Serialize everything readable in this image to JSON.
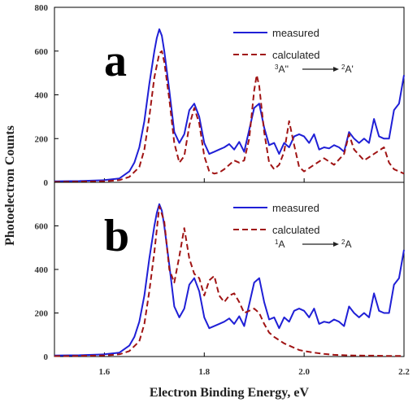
{
  "chart_data": [
    {
      "type": "line",
      "panel_label": "a",
      "xlabel": "Electron Binding Energy, eV",
      "ylabel": "Photoelectron Counts",
      "xlim": [
        1.5,
        2.2
      ],
      "ylim": [
        0,
        800
      ],
      "xticks": [
        "1.6",
        "1.8",
        "2.0",
        "2.2"
      ],
      "yticks": [
        "0",
        "200",
        "400",
        "600",
        "800"
      ],
      "transition": {
        "from_sup": "3",
        "from": "A''",
        "to_sup": "2",
        "to": "A'"
      },
      "colors": {
        "measured": "#1f1fd6",
        "calculated": "#a01414"
      },
      "series": [
        {
          "name": "measured",
          "style": "solid",
          "x": [
            1.5,
            1.55,
            1.6,
            1.63,
            1.65,
            1.66,
            1.67,
            1.68,
            1.69,
            1.7,
            1.705,
            1.71,
            1.715,
            1.72,
            1.73,
            1.74,
            1.75,
            1.76,
            1.77,
            1.78,
            1.79,
            1.8,
            1.81,
            1.82,
            1.83,
            1.84,
            1.85,
            1.86,
            1.87,
            1.88,
            1.89,
            1.9,
            1.91,
            1.92,
            1.93,
            1.94,
            1.95,
            1.96,
            1.97,
            1.98,
            1.99,
            2.0,
            2.01,
            2.02,
            2.03,
            2.04,
            2.05,
            2.06,
            2.07,
            2.08,
            2.09,
            2.1,
            2.11,
            2.12,
            2.13,
            2.14,
            2.15,
            2.16,
            2.17,
            2.18,
            2.19,
            2.2
          ],
          "y": [
            5,
            6,
            10,
            18,
            50,
            90,
            160,
            280,
            450,
            600,
            660,
            700,
            670,
            600,
            420,
            230,
            180,
            220,
            330,
            360,
            300,
            180,
            130,
            140,
            150,
            160,
            175,
            150,
            185,
            140,
            240,
            340,
            360,
            250,
            170,
            180,
            130,
            180,
            160,
            210,
            220,
            210,
            180,
            220,
            150,
            160,
            155,
            170,
            160,
            140,
            230,
            200,
            180,
            200,
            180,
            290,
            210,
            200,
            200,
            330,
            360,
            490
          ]
        },
        {
          "name": "calculated",
          "style": "dashed",
          "x": [
            1.5,
            1.55,
            1.6,
            1.63,
            1.65,
            1.67,
            1.68,
            1.69,
            1.7,
            1.71,
            1.715,
            1.72,
            1.73,
            1.74,
            1.75,
            1.76,
            1.77,
            1.78,
            1.79,
            1.8,
            1.81,
            1.82,
            1.83,
            1.84,
            1.85,
            1.86,
            1.87,
            1.88,
            1.89,
            1.9,
            1.905,
            1.91,
            1.92,
            1.93,
            1.94,
            1.95,
            1.96,
            1.97,
            1.98,
            1.99,
            2.0,
            2.02,
            2.04,
            2.06,
            2.08,
            2.09,
            2.1,
            2.12,
            2.14,
            2.16,
            2.17,
            2.18,
            2.2
          ],
          "y": [
            2,
            3,
            5,
            10,
            25,
            70,
            150,
            300,
            480,
            590,
            600,
            550,
            380,
            180,
            90,
            120,
            260,
            340,
            270,
            120,
            50,
            40,
            45,
            60,
            80,
            100,
            90,
            100,
            200,
            420,
            490,
            440,
            230,
            90,
            60,
            80,
            140,
            280,
            170,
            70,
            50,
            80,
            110,
            80,
            130,
            220,
            150,
            100,
            130,
            160,
            90,
            60,
            40
          ]
        }
      ]
    },
    {
      "type": "line",
      "panel_label": "b",
      "xlabel": "Electron Binding Energy, eV",
      "ylabel": "Photoelectron Counts",
      "xlim": [
        1.5,
        2.2
      ],
      "ylim": [
        0,
        800
      ],
      "xticks": [
        "1.6",
        "1.8",
        "2.0",
        "2.2"
      ],
      "yticks": [
        "0",
        "200",
        "400",
        "600"
      ],
      "transition": {
        "from_sup": "1",
        "from": "A",
        "to_sup": "2",
        "to": "A"
      },
      "colors": {
        "measured": "#1f1fd6",
        "calculated": "#a01414"
      },
      "series": [
        {
          "name": "measured",
          "style": "solid",
          "x": [
            1.5,
            1.55,
            1.6,
            1.63,
            1.65,
            1.66,
            1.67,
            1.68,
            1.69,
            1.7,
            1.705,
            1.71,
            1.715,
            1.72,
            1.73,
            1.74,
            1.75,
            1.76,
            1.77,
            1.78,
            1.79,
            1.8,
            1.81,
            1.82,
            1.83,
            1.84,
            1.85,
            1.86,
            1.87,
            1.88,
            1.89,
            1.9,
            1.91,
            1.92,
            1.93,
            1.94,
            1.95,
            1.96,
            1.97,
            1.98,
            1.99,
            2.0,
            2.01,
            2.02,
            2.03,
            2.04,
            2.05,
            2.06,
            2.07,
            2.08,
            2.09,
            2.1,
            2.11,
            2.12,
            2.13,
            2.14,
            2.15,
            2.16,
            2.17,
            2.18,
            2.19,
            2.2
          ],
          "y": [
            5,
            6,
            10,
            18,
            50,
            90,
            160,
            280,
            450,
            600,
            660,
            700,
            670,
            600,
            420,
            230,
            180,
            220,
            330,
            360,
            300,
            180,
            130,
            140,
            150,
            160,
            175,
            150,
            185,
            140,
            240,
            340,
            360,
            250,
            170,
            180,
            130,
            180,
            160,
            210,
            220,
            210,
            180,
            220,
            150,
            160,
            155,
            170,
            160,
            140,
            230,
            200,
            180,
            200,
            180,
            290,
            210,
            200,
            200,
            330,
            360,
            490
          ]
        },
        {
          "name": "calculated",
          "style": "dashed",
          "x": [
            1.5,
            1.55,
            1.6,
            1.63,
            1.65,
            1.67,
            1.68,
            1.69,
            1.7,
            1.71,
            1.72,
            1.73,
            1.74,
            1.75,
            1.76,
            1.77,
            1.78,
            1.79,
            1.8,
            1.81,
            1.82,
            1.83,
            1.84,
            1.85,
            1.86,
            1.87,
            1.88,
            1.89,
            1.9,
            1.91,
            1.92,
            1.93,
            1.94,
            1.95,
            1.96,
            1.97,
            1.98,
            1.99,
            2.0,
            2.02,
            2.04,
            2.06,
            2.08,
            2.1,
            2.12,
            2.14,
            2.16,
            2.18,
            2.2
          ],
          "y": [
            2,
            3,
            5,
            10,
            25,
            70,
            150,
            300,
            480,
            690,
            620,
            400,
            340,
            460,
            590,
            450,
            380,
            360,
            280,
            350,
            370,
            280,
            250,
            280,
            290,
            250,
            200,
            210,
            220,
            200,
            150,
            110,
            90,
            75,
            60,
            50,
            40,
            30,
            25,
            18,
            12,
            8,
            6,
            5,
            4,
            4,
            3,
            3,
            3
          ]
        }
      ]
    }
  ]
}
